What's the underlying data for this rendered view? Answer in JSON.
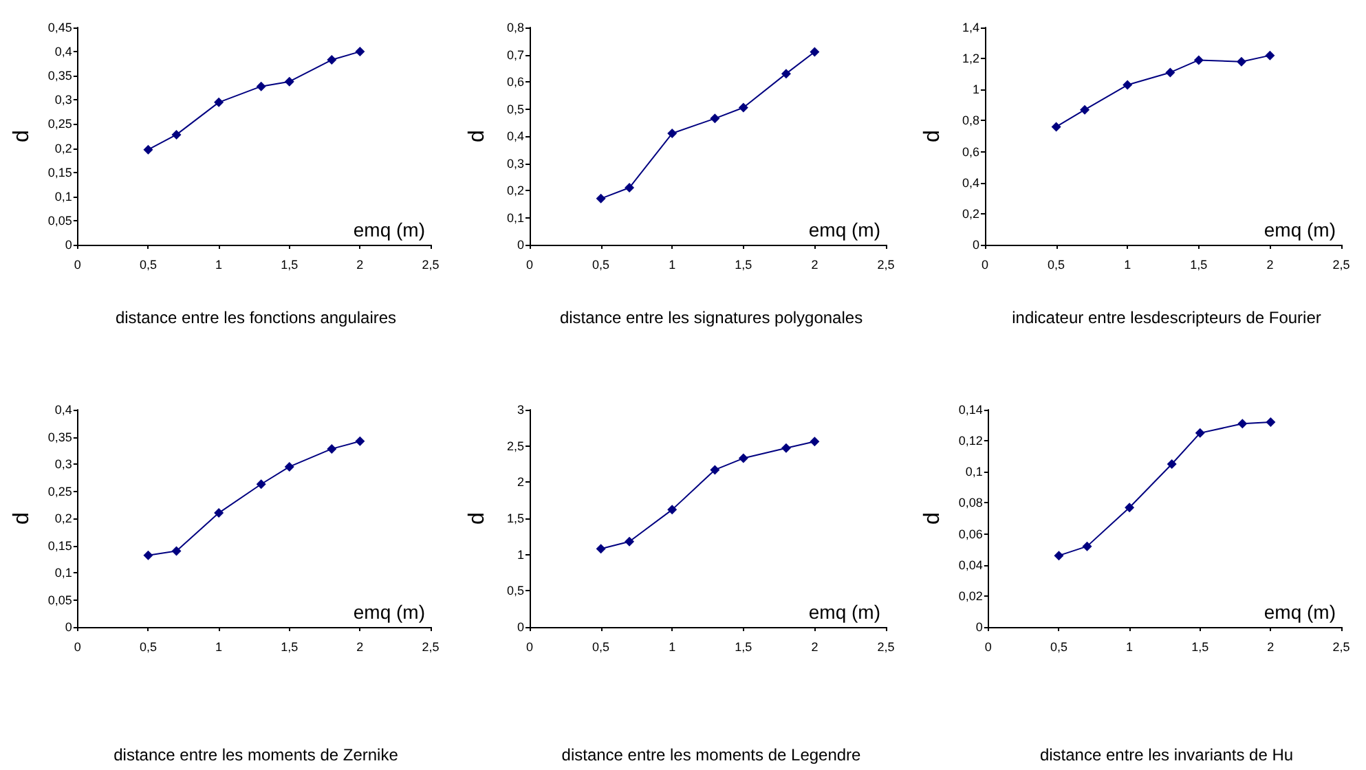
{
  "chart_data": [
    {
      "type": "line",
      "title": "distance entre les fonctions angulaires",
      "xlabel": "emq (m)",
      "ylabel": "d",
      "marker": "diamond",
      "grid": false,
      "xlim": [
        0,
        2.5
      ],
      "xticks": [
        0,
        {
          "value": 0.5,
          "label": "0,5"
        },
        1,
        {
          "value": 1.5,
          "label": "1,5"
        },
        2,
        {
          "value": 2.5,
          "label": "2,5"
        }
      ],
      "ylim": [
        0,
        0.45
      ],
      "yticks": [
        0,
        {
          "value": 0.05,
          "label": "0,05"
        },
        {
          "value": 0.1,
          "label": "0,1"
        },
        {
          "value": 0.15,
          "label": "0,15"
        },
        {
          "value": 0.2,
          "label": "0,2"
        },
        {
          "value": 0.25,
          "label": "0,25"
        },
        {
          "value": 0.3,
          "label": "0,3"
        },
        {
          "value": 0.35,
          "label": "0,35"
        },
        {
          "value": 0.4,
          "label": "0,4"
        },
        {
          "value": 0.45,
          "label": "0,45"
        }
      ],
      "x": [
        0.5,
        0.7,
        1,
        1.3,
        1.5,
        1.8,
        2
      ],
      "series": [
        {
          "color": "#000080",
          "values": [
            0.197,
            0.228,
            0.295,
            0.328,
            0.338,
            0.383,
            0.4
          ]
        }
      ]
    },
    {
      "type": "line",
      "title": "distance entre les signatures polygonales",
      "xlabel": "emq (m)",
      "ylabel": "d",
      "marker": "diamond",
      "grid": false,
      "xlim": [
        0,
        2.5
      ],
      "xticks": [
        0,
        {
          "value": 0.5,
          "label": "0,5"
        },
        1,
        {
          "value": 1.5,
          "label": "1,5"
        },
        2,
        {
          "value": 2.5,
          "label": "2,5"
        }
      ],
      "ylim": [
        0,
        0.8
      ],
      "yticks": [
        0,
        {
          "value": 0.1,
          "label": "0,1"
        },
        {
          "value": 0.2,
          "label": "0,2"
        },
        {
          "value": 0.3,
          "label": "0,3"
        },
        {
          "value": 0.4,
          "label": "0,4"
        },
        {
          "value": 0.5,
          "label": "0,5"
        },
        {
          "value": 0.6,
          "label": "0,6"
        },
        {
          "value": 0.7,
          "label": "0,7"
        },
        {
          "value": 0.8,
          "label": "0,8"
        }
      ],
      "x": [
        0.5,
        0.7,
        1,
        1.3,
        1.5,
        1.8,
        2
      ],
      "series": [
        {
          "color": "#000080",
          "values": [
            0.17,
            0.21,
            0.41,
            0.465,
            0.505,
            0.63,
            0.71
          ]
        }
      ]
    },
    {
      "type": "line",
      "title": "indicateur entre lesdescripteurs de Fourier",
      "xlabel": "emq (m)",
      "ylabel": "d",
      "marker": "diamond",
      "grid": false,
      "xlim": [
        0,
        2.5
      ],
      "xticks": [
        0,
        {
          "value": 0.5,
          "label": "0,5"
        },
        1,
        {
          "value": 1.5,
          "label": "1,5"
        },
        2,
        {
          "value": 2.5,
          "label": "2,5"
        }
      ],
      "ylim": [
        0,
        1.4
      ],
      "yticks": [
        0,
        {
          "value": 0.2,
          "label": "0,2"
        },
        {
          "value": 0.4,
          "label": "0,4"
        },
        {
          "value": 0.6,
          "label": "0,6"
        },
        {
          "value": 0.8,
          "label": "0,8"
        },
        1,
        {
          "value": 1.2,
          "label": "1,2"
        },
        {
          "value": 1.4,
          "label": "1,4"
        }
      ],
      "x": [
        0.5,
        0.7,
        1,
        1.3,
        1.5,
        1.8,
        2
      ],
      "series": [
        {
          "color": "#000080",
          "values": [
            0.76,
            0.87,
            1.03,
            1.11,
            1.19,
            1.18,
            1.22
          ]
        }
      ]
    },
    {
      "type": "line",
      "title": "distance entre les moments de Zernike",
      "xlabel": "emq (m)",
      "ylabel": "d",
      "marker": "diamond",
      "grid": false,
      "xlim": [
        0,
        2.5
      ],
      "xticks": [
        0,
        {
          "value": 0.5,
          "label": "0,5"
        },
        1,
        {
          "value": 1.5,
          "label": "1,5"
        },
        2,
        {
          "value": 2.5,
          "label": "2,5"
        }
      ],
      "ylim": [
        0,
        0.4
      ],
      "yticks": [
        0,
        {
          "value": 0.05,
          "label": "0,05"
        },
        {
          "value": 0.1,
          "label": "0,1"
        },
        {
          "value": 0.15,
          "label": "0,15"
        },
        {
          "value": 0.2,
          "label": "0,2"
        },
        {
          "value": 0.25,
          "label": "0,25"
        },
        {
          "value": 0.3,
          "label": "0,3"
        },
        {
          "value": 0.35,
          "label": "0,35"
        },
        {
          "value": 0.4,
          "label": "0,4"
        }
      ],
      "x": [
        0.5,
        0.7,
        1,
        1.3,
        1.5,
        1.8,
        2
      ],
      "series": [
        {
          "color": "#000080",
          "values": [
            0.132,
            0.14,
            0.21,
            0.263,
            0.295,
            0.328,
            0.342
          ]
        }
      ]
    },
    {
      "type": "line",
      "title": "distance entre les moments de Legendre",
      "xlabel": "emq (m)",
      "ylabel": "d",
      "marker": "diamond",
      "grid": false,
      "xlim": [
        0,
        2.5
      ],
      "xticks": [
        0,
        {
          "value": 0.5,
          "label": "0,5"
        },
        1,
        {
          "value": 1.5,
          "label": "1,5"
        },
        2,
        {
          "value": 2.5,
          "label": "2,5"
        }
      ],
      "ylim": [
        0,
        3
      ],
      "yticks": [
        0,
        {
          "value": 0.5,
          "label": "0,5"
        },
        1,
        {
          "value": 1.5,
          "label": "1,5"
        },
        2,
        {
          "value": 2.5,
          "label": "2,5"
        },
        3
      ],
      "x": [
        0.5,
        0.7,
        1,
        1.3,
        1.5,
        1.8,
        2
      ],
      "series": [
        {
          "color": "#000080",
          "values": [
            1.08,
            1.18,
            1.62,
            2.17,
            2.33,
            2.47,
            2.56
          ]
        }
      ]
    },
    {
      "type": "line",
      "title": "distance entre les invariants de Hu",
      "xlabel": "emq (m)",
      "ylabel": "d",
      "marker": "diamond",
      "grid": false,
      "xlim": [
        0,
        2.5
      ],
      "xticks": [
        0,
        {
          "value": 0.5,
          "label": "0,5"
        },
        1,
        {
          "value": 1.5,
          "label": "1,5"
        },
        2,
        {
          "value": 2.5,
          "label": "2,5"
        }
      ],
      "ylim": [
        0,
        0.14
      ],
      "yticks": [
        0,
        {
          "value": 0.02,
          "label": "0,02"
        },
        {
          "value": 0.04,
          "label": "0,04"
        },
        {
          "value": 0.06,
          "label": "0,06"
        },
        {
          "value": 0.08,
          "label": "0,08"
        },
        {
          "value": 0.1,
          "label": "0,1"
        },
        {
          "value": 0.12,
          "label": "0,12"
        },
        {
          "value": 0.14,
          "label": "0,14"
        }
      ],
      "x": [
        0.5,
        0.7,
        1,
        1.3,
        1.5,
        1.8,
        2
      ],
      "series": [
        {
          "color": "#000080",
          "values": [
            0.046,
            0.052,
            0.077,
            0.105,
            0.125,
            0.131,
            0.132
          ]
        }
      ]
    }
  ]
}
